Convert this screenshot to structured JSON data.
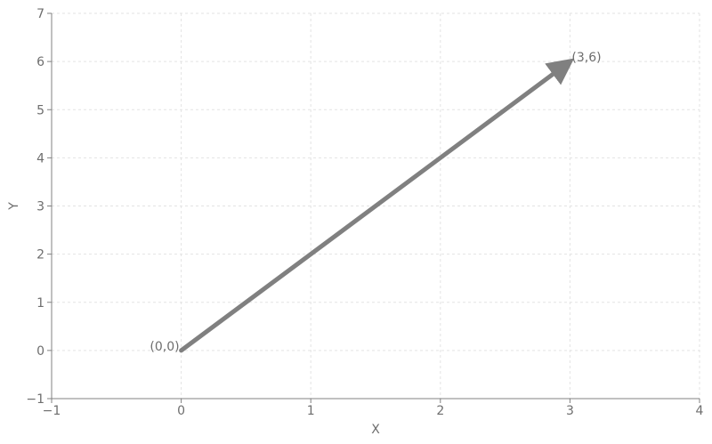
{
  "chart_data": {
    "type": "line",
    "title": "",
    "xlabel": "X",
    "ylabel": "Y",
    "xlim": [
      -1,
      4
    ],
    "ylim": [
      -1,
      7
    ],
    "xticks": [
      -1,
      0,
      1,
      2,
      3,
      4
    ],
    "yticks": [
      -1,
      0,
      1,
      2,
      3,
      4,
      5,
      6,
      7
    ],
    "xtick_labels": [
      "−1",
      "0",
      "1",
      "2",
      "3",
      "4"
    ],
    "ytick_labels": [
      "−1",
      "0",
      "1",
      "2",
      "3",
      "4",
      "5",
      "6",
      "7"
    ],
    "grid": true,
    "grid_style": "dashed",
    "series": [
      {
        "kind": "arrow",
        "x": [
          0,
          3
        ],
        "y": [
          0,
          6
        ],
        "color": "#808080"
      }
    ],
    "annotations": [
      {
        "text": "(0,0)",
        "x": 0,
        "y": 0,
        "anchor": "left-of-point"
      },
      {
        "text": "(3,6)",
        "x": 3,
        "y": 6,
        "anchor": "right-of-point"
      }
    ],
    "axis_color": "#808080",
    "grid_color": "#e3e3e3",
    "text_color": "#6e6e6e"
  }
}
